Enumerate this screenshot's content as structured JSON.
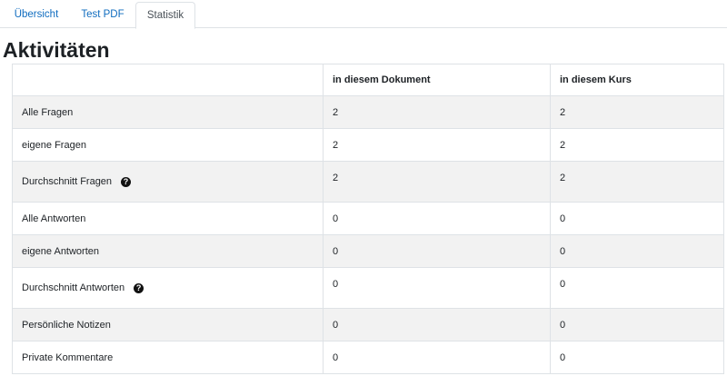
{
  "tabs": [
    {
      "label": "Übersicht",
      "active": false
    },
    {
      "label": "Test PDF",
      "active": false
    },
    {
      "label": "Statistik",
      "active": true
    }
  ],
  "heading": "Aktivitäten",
  "table": {
    "headers": [
      "",
      "in diesem Dokument",
      "in diesem Kurs"
    ],
    "rows": [
      {
        "label": "Alle Fragen",
        "doc": "2",
        "course": "2"
      },
      {
        "label": "eigene Fragen",
        "doc": "2",
        "course": "2"
      },
      {
        "label": "Durchschnitt Fragen",
        "doc": "2",
        "course": "2",
        "help_icon": "question-circle-icon"
      },
      {
        "label": "Alle Antworten",
        "doc": "0",
        "course": "0"
      },
      {
        "label": "eigene Antworten",
        "doc": "0",
        "course": "0"
      },
      {
        "label": "Durchschnitt Antworten",
        "doc": "0",
        "course": "0",
        "help_icon": "question-circle-icon"
      },
      {
        "label": "Persönliche Notizen",
        "doc": "0",
        "course": "0"
      },
      {
        "label": "Private Kommentare",
        "doc": "0",
        "course": "0"
      }
    ]
  }
}
